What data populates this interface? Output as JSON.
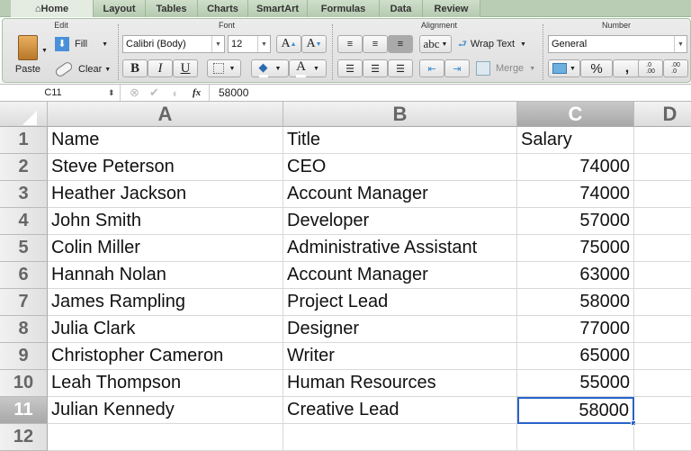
{
  "tabs": [
    "Home",
    "Layout",
    "Tables",
    "Charts",
    "SmartArt",
    "Formulas",
    "Data",
    "Review"
  ],
  "active_tab": "Home",
  "ribbon": {
    "edit": {
      "label": "Edit",
      "paste": "Paste",
      "fill": "Fill",
      "clear": "Clear"
    },
    "font": {
      "label": "Font",
      "name": "Calibri (Body)",
      "size": "12",
      "bold": "B",
      "italic": "I",
      "underline": "U",
      "grow": "A",
      "shrink": "A",
      "color": "A"
    },
    "alignment": {
      "label": "Alignment",
      "orientation": "abc",
      "wrap": "Wrap Text",
      "merge": "Merge"
    },
    "number": {
      "label": "Number",
      "format": "General",
      "percent": "%",
      "comma": ",",
      "inc_decimal": ".0\n.00",
      "dec_decimal": ".00\n.0"
    }
  },
  "formula_bar": {
    "name_box": "C11",
    "fx": "fx",
    "value": "58000"
  },
  "columns": [
    "A",
    "B",
    "C",
    "D"
  ],
  "selected_cell": "C11",
  "rows": [
    [
      "Name",
      "Title",
      "Salary"
    ],
    [
      "Steve Peterson",
      "CEO",
      "74000"
    ],
    [
      "Heather Jackson",
      "Account Manager",
      "74000"
    ],
    [
      "John Smith",
      "Developer",
      "57000"
    ],
    [
      "Colin Miller",
      "Administrative Assistant",
      "75000"
    ],
    [
      "Hannah Nolan",
      "Account Manager",
      "63000"
    ],
    [
      "James Rampling",
      "Project Lead",
      "58000"
    ],
    [
      "Julia Clark",
      "Designer",
      "77000"
    ],
    [
      "Christopher Cameron",
      "Writer",
      "65000"
    ],
    [
      "Leah Thompson",
      "Human Resources",
      "55000"
    ],
    [
      "Julian Kennedy",
      "Creative Lead",
      "58000"
    ],
    [
      "",
      "",
      ""
    ]
  ],
  "row_numbers": [
    "1",
    "2",
    "3",
    "4",
    "5",
    "6",
    "7",
    "8",
    "9",
    "10",
    "11",
    "12"
  ]
}
